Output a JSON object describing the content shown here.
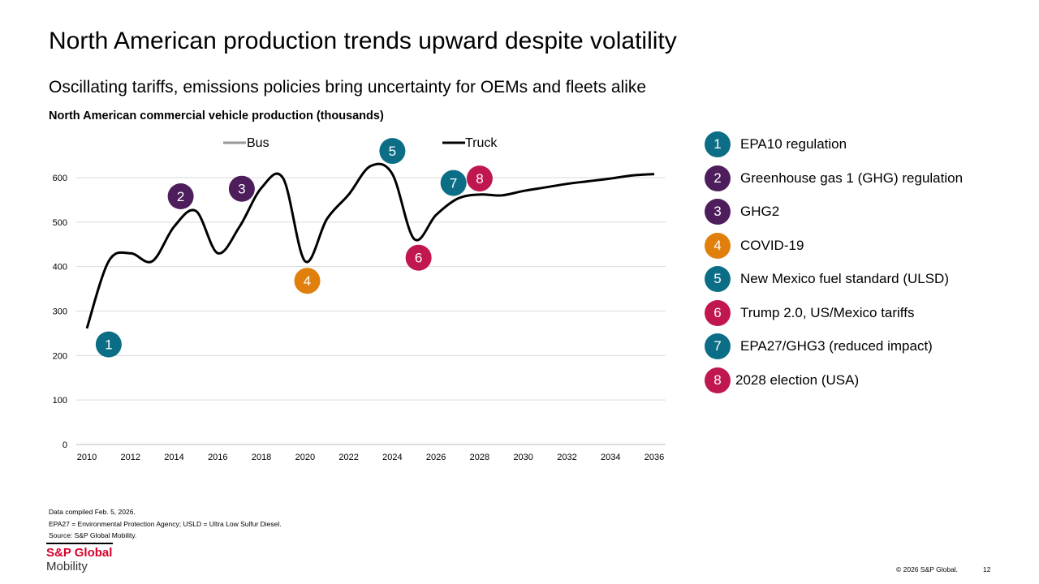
{
  "header": {
    "title": "North American production trends upward despite volatility",
    "subtitle": "Oscillating tariffs, emissions policies bring uncertainty for OEMs and fleets alike"
  },
  "chart_data": {
    "type": "line",
    "title": "North American commercial vehicle production (thousands)",
    "xlim": [
      2010,
      2036
    ],
    "ylim": [
      0,
      600
    ],
    "x_ticks": [
      "2010",
      "2012",
      "2014",
      "2016",
      "2018",
      "2020",
      "2022",
      "2024",
      "2026",
      "2028",
      "2030",
      "2032",
      "2034",
      "2036"
    ],
    "y_ticks": [
      "0",
      "100",
      "200",
      "300",
      "400",
      "500",
      "600"
    ],
    "grid": "horizontal",
    "legend_placement": "top",
    "legend": [
      {
        "name": "Bus",
        "color": "#999999"
      },
      {
        "name": "Truck",
        "color": "#000000"
      }
    ],
    "x": [
      2010,
      2011,
      2012,
      2013,
      2014,
      2015,
      2016,
      2017,
      2018,
      2019,
      2020,
      2021,
      2022,
      2023,
      2024,
      2025,
      2026,
      2027,
      2028,
      2029,
      2030,
      2031,
      2032,
      2033,
      2034,
      2035,
      2036
    ],
    "series": [
      {
        "name": "Truck",
        "color": "#000000",
        "values": [
          261,
          412,
          430,
          412,
          490,
          525,
          430,
          490,
          577,
          598,
          412,
          507,
          562,
          626,
          608,
          462,
          516,
          553,
          562,
          560,
          570,
          578,
          586,
          592,
          598,
          605,
          608
        ]
      }
    ],
    "annotations": [
      {
        "label": "1",
        "x": 2011,
        "y": 225,
        "color": "#0b6e86"
      },
      {
        "label": "2",
        "x": 2014.3,
        "y": 558,
        "color": "#4e1d5c"
      },
      {
        "label": "3",
        "x": 2017.1,
        "y": 575,
        "color": "#4e1d5c"
      },
      {
        "label": "4",
        "x": 2020.1,
        "y": 368,
        "color": "#e07f0b"
      },
      {
        "label": "5",
        "x": 2024,
        "y": 660,
        "color": "#0b6e86"
      },
      {
        "label": "6",
        "x": 2025.2,
        "y": 420,
        "color": "#c0174f"
      },
      {
        "label": "7",
        "x": 2026.8,
        "y": 588,
        "color": "#0b6e86"
      },
      {
        "label": "8",
        "x": 2028,
        "y": 598,
        "color": "#c0174f"
      }
    ]
  },
  "key": [
    {
      "num": "1",
      "text": "EPA10 regulation",
      "color": "#0b6e86"
    },
    {
      "num": "2",
      "text": "Greenhouse gas 1 (GHG) regulation",
      "color": "#4e1d5c"
    },
    {
      "num": "3",
      "text": "GHG2",
      "color": "#4e1d5c"
    },
    {
      "num": "4",
      "text": "COVID-19",
      "color": "#e07f0b"
    },
    {
      "num": "5",
      "text": "New Mexico fuel standard (ULSD)",
      "color": "#0b6e86"
    },
    {
      "num": "6",
      "text": "Trump 2.0, US/Mexico tariffs",
      "color": "#c0174f"
    },
    {
      "num": "7",
      "text": "EPA27/GHG3 (reduced impact)",
      "color": "#0b6e86"
    },
    {
      "num": "8",
      "text": "2028 election (USA)",
      "color": "#c0174f"
    }
  ],
  "footer": {
    "note1": "Data compiled Feb. 5, 2026.",
    "note2": "EPA27 = Environmental Protection Agency; USLD = Ultra Low Sulfur Diesel.",
    "note3": "Source: S&P Global Mobility.",
    "logo1": "S&P Global",
    "logo2": "Mobility",
    "copyright": "© 2026 S&P Global.",
    "page": "12"
  }
}
